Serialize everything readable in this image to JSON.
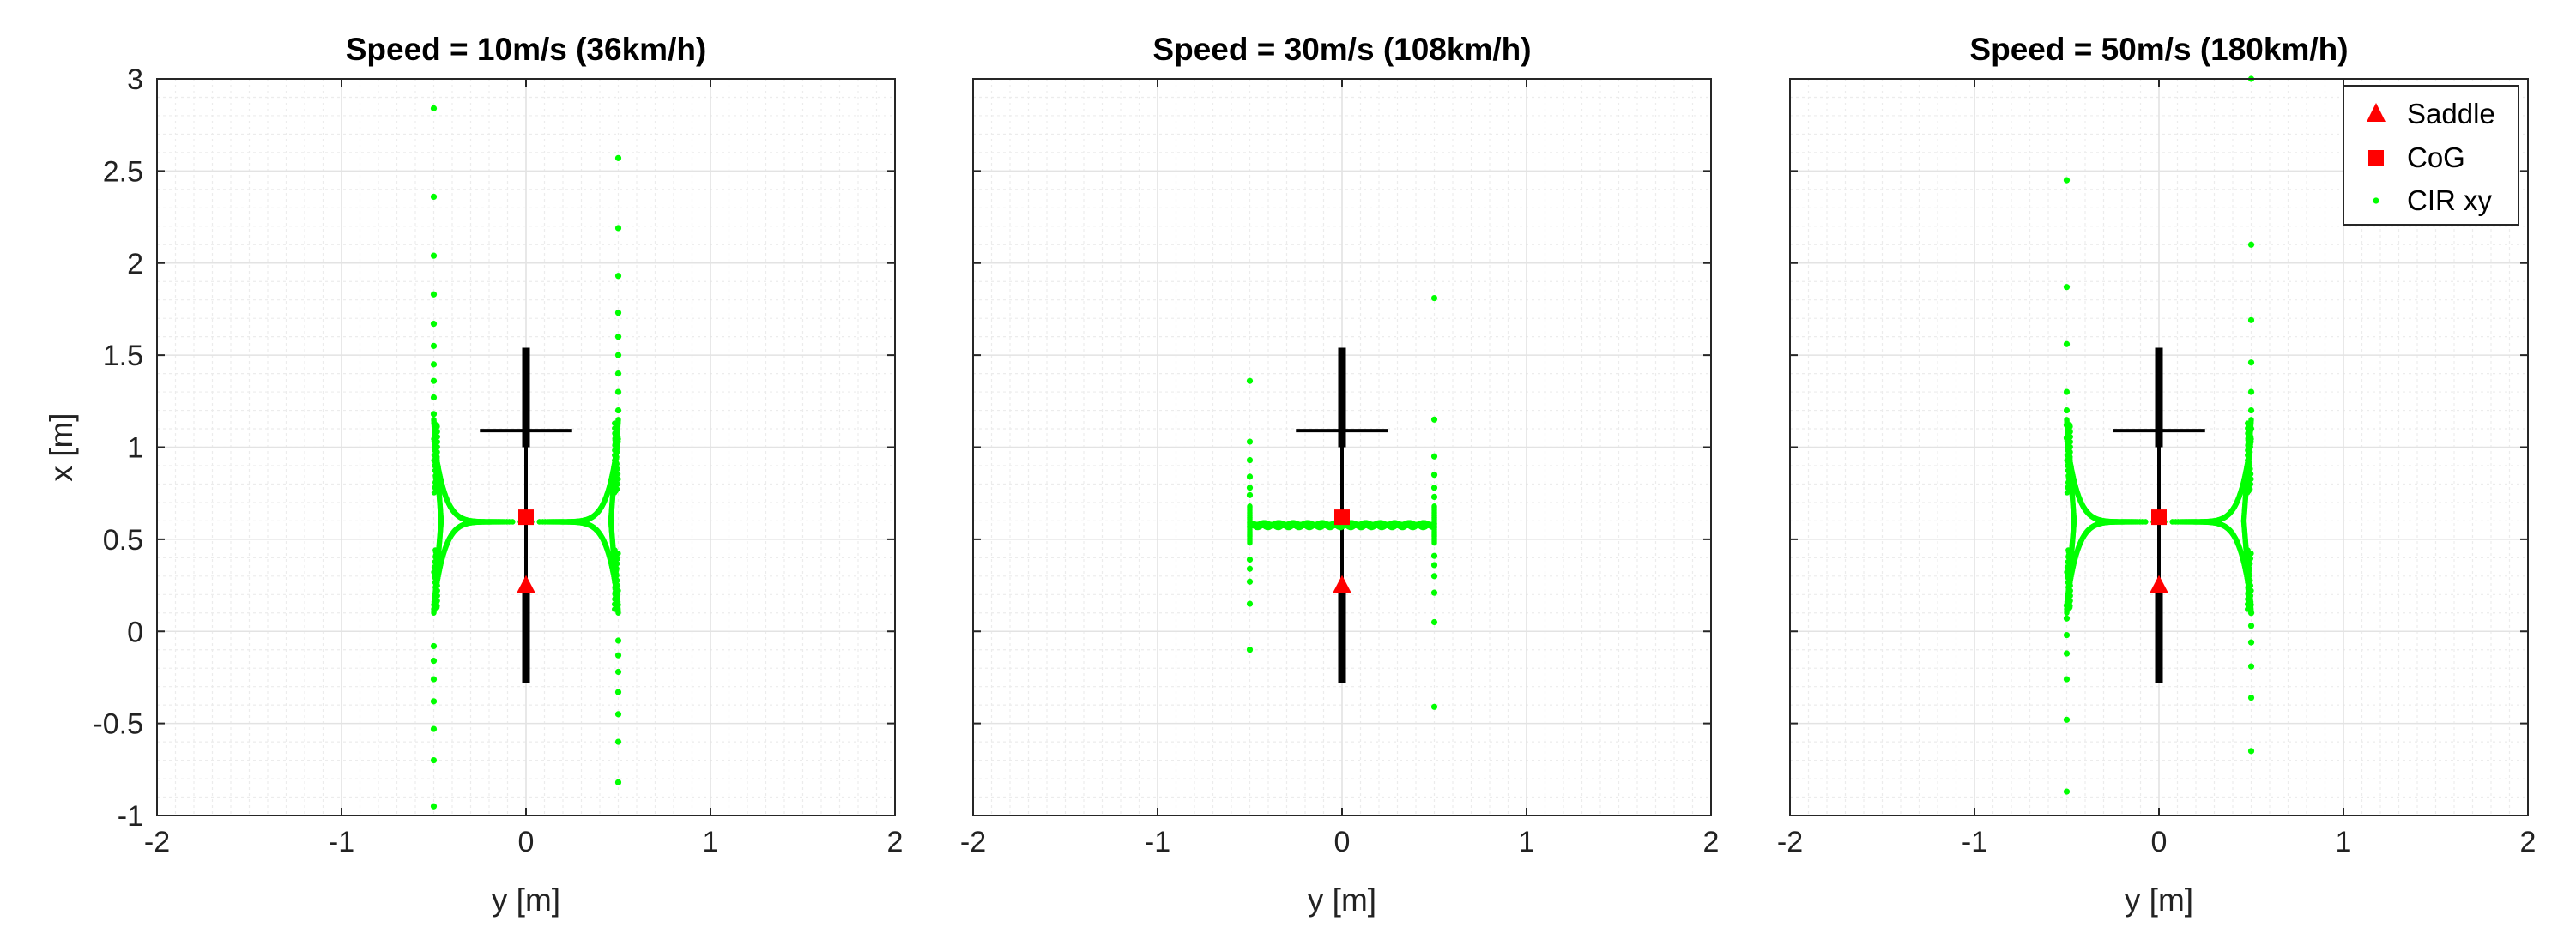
{
  "chart_data": [
    {
      "type": "scatter",
      "title": "Speed = 10m/s (36km/h)",
      "xlabel": "y [m]",
      "ylabel": "x [m]",
      "xlim": [
        -2,
        2
      ],
      "ylim": [
        -1,
        3
      ],
      "xticks": [
        "-2",
        "-1",
        "0",
        "1",
        "2"
      ],
      "yticks": [
        "-1",
        "-0.5",
        "0",
        "0.5",
        "1",
        "1.5",
        "2",
        "2.5",
        "3"
      ],
      "grid": true,
      "minor_grid": true,
      "bike": {
        "frame_x": [
          -0.28,
          1.54
        ],
        "wheel_x": [
          [
            -0.28,
            0.25
          ],
          [
            1.0,
            1.54
          ]
        ],
        "handlebar_x": 1.09,
        "handlebar_y": [
          -0.25,
          0.25
        ]
      },
      "saddle": {
        "y": 0,
        "x": 0.25
      },
      "cog": {
        "y": 0,
        "x": 0.62
      },
      "cir_profile": "wide",
      "cir_outliers": {
        "left": [
          -0.95,
          -0.7,
          -0.53,
          -0.38,
          -0.26,
          -0.16,
          -0.08,
          1.18,
          1.27,
          1.36,
          1.45,
          1.55,
          1.67,
          1.83,
          2.04,
          2.36,
          2.84
        ],
        "right": [
          -0.82,
          -0.6,
          -0.45,
          -0.33,
          -0.22,
          -0.13,
          -0.05,
          1.2,
          1.3,
          1.4,
          1.5,
          1.6,
          1.73,
          1.93,
          2.19,
          2.57
        ]
      }
    },
    {
      "type": "scatter",
      "title": "Speed = 30m/s (108km/h)",
      "xlabel": "y [m]",
      "ylabel": "",
      "xlim": [
        -2,
        2
      ],
      "ylim": [
        -1,
        3
      ],
      "xticks": [
        "-2",
        "-1",
        "0",
        "1",
        "2"
      ],
      "grid": true,
      "minor_grid": true,
      "bike": {
        "frame_x": [
          -0.28,
          1.54
        ],
        "wheel_x": [
          [
            -0.28,
            0.25
          ],
          [
            1.0,
            1.54
          ]
        ],
        "handlebar_x": 1.09,
        "handlebar_y": [
          -0.25,
          0.25
        ]
      },
      "saddle": {
        "y": 0,
        "x": 0.25
      },
      "cog": {
        "y": 0,
        "x": 0.62
      },
      "cir_profile": "narrow",
      "cir_outliers": {
        "left": [
          -0.1,
          0.15,
          0.27,
          0.34,
          0.39,
          0.74,
          0.78,
          0.84,
          0.93,
          1.03,
          1.36
        ],
        "right": [
          -0.41,
          0.05,
          0.21,
          0.3,
          0.36,
          0.41,
          0.73,
          0.78,
          0.85,
          0.95,
          1.15,
          1.81
        ]
      }
    },
    {
      "type": "scatter",
      "title": "Speed = 50m/s (180km/h)",
      "xlabel": "y [m]",
      "ylabel": "",
      "xlim": [
        -2,
        2
      ],
      "ylim": [
        -1,
        3
      ],
      "xticks": [
        "-2",
        "-1",
        "0",
        "1",
        "2"
      ],
      "grid": true,
      "minor_grid": true,
      "legend": {
        "placement": "top-right",
        "entries": [
          "Saddle",
          "CoG",
          "CIR xy"
        ]
      },
      "bike": {
        "frame_x": [
          -0.28,
          1.54
        ],
        "wheel_x": [
          [
            -0.28,
            0.25
          ],
          [
            1.0,
            1.54
          ]
        ],
        "handlebar_x": 1.09,
        "handlebar_y": [
          -0.25,
          0.25
        ]
      },
      "saddle": {
        "y": 0,
        "x": 0.25
      },
      "cog": {
        "y": 0,
        "x": 0.62
      },
      "cir_profile": "wide",
      "cir_outliers": {
        "left": [
          -0.87,
          -0.48,
          -0.26,
          -0.12,
          -0.02,
          0.07,
          0.14,
          1.05,
          1.12,
          1.2,
          1.3,
          1.56,
          1.87,
          2.45
        ],
        "right": [
          -0.65,
          -0.36,
          -0.19,
          -0.06,
          0.03,
          0.1,
          1.1,
          1.2,
          1.3,
          1.46,
          1.69,
          2.1,
          3.0
        ]
      }
    }
  ],
  "colors": {
    "cir": "#00ff00",
    "markers": "#ff0000",
    "bike": "#000000",
    "grid": "#e3e3e3",
    "axes": "#262626"
  }
}
